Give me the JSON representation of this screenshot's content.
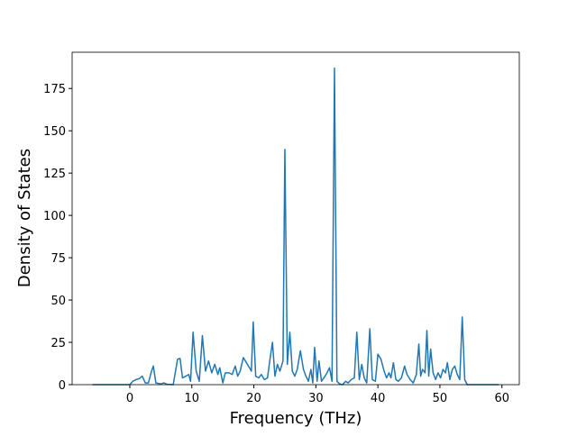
{
  "chart_data": {
    "type": "line",
    "x_label": "Frequency (THz)",
    "y_label": "Density of States",
    "x": [
      -6,
      0,
      0.5,
      1,
      1.5,
      2,
      2.5,
      3,
      3.5,
      3.8,
      4.2,
      5,
      5.5,
      6,
      7,
      7.7,
      8.1,
      8.5,
      9,
      9.5,
      9.8,
      10.2,
      10.7,
      11.2,
      11.7,
      12.2,
      12.7,
      13.2,
      13.7,
      14.2,
      14.5,
      15,
      15.4,
      16,
      16.5,
      17,
      17.4,
      17.8,
      18.3,
      18.8,
      19.3,
      19.6,
      19.9,
      20.3,
      20.8,
      21.2,
      21.7,
      22.2,
      22.6,
      23,
      23.4,
      23.8,
      24.2,
      24.7,
      25,
      25.4,
      25.8,
      26.2,
      26.6,
      27,
      27.5,
      28,
      28.4,
      28.8,
      29.2,
      29.5,
      29.8,
      30.2,
      30.5,
      30.9,
      31.3,
      31.8,
      32.2,
      32.6,
      33,
      33.4,
      33.8,
      34.3,
      34.8,
      35.2,
      35.7,
      36.2,
      36.6,
      37,
      37.4,
      37.8,
      38.2,
      38.7,
      39.1,
      39.6,
      40,
      40.5,
      41,
      41.4,
      41.8,
      42.1,
      42.5,
      42.9,
      43.3,
      43.8,
      44.3,
      44.7,
      45.2,
      45.7,
      46.2,
      46.6,
      46.9,
      47.2,
      47.6,
      47.9,
      48.2,
      48.5,
      48.9,
      49.3,
      49.7,
      50.1,
      50.5,
      50.9,
      51.2,
      51.6,
      52,
      52.4,
      52.8,
      53.2,
      53.6,
      54,
      54.4,
      55,
      59.5
    ],
    "series": [
      {
        "color": "#1f77b4",
        "values": [
          0,
          0,
          2,
          3,
          3.5,
          5,
          1,
          1,
          8,
          11,
          1,
          0.5,
          1,
          0.2,
          0,
          15,
          15.5,
          4,
          5,
          6,
          2,
          31,
          8,
          2,
          29,
          8,
          14,
          7,
          12,
          6,
          10,
          1,
          7,
          7,
          6,
          11,
          5,
          8,
          16,
          13,
          10,
          8,
          37,
          5,
          4,
          6,
          3,
          4,
          15,
          25,
          5,
          12,
          8,
          14,
          139,
          12,
          31,
          8,
          5,
          9,
          20,
          9,
          5,
          2,
          9,
          1,
          22,
          2,
          14,
          2,
          4,
          7,
          10,
          2,
          187,
          2,
          0.5,
          0,
          2,
          1,
          3,
          4,
          31,
          3,
          12,
          4,
          1,
          33,
          3,
          2,
          18,
          15,
          8,
          4,
          7,
          4,
          13,
          3,
          2,
          4,
          11,
          6,
          3,
          1,
          6,
          24,
          5,
          9,
          7,
          32,
          5,
          21,
          7,
          3,
          7,
          4,
          9,
          7,
          13,
          3,
          9,
          11,
          6,
          3,
          40,
          3,
          0,
          0,
          0
        ]
      }
    ],
    "xlim": [
      -9.3,
      62.8
    ],
    "ylim": [
      0,
      196.4
    ],
    "xticks": [
      0,
      10,
      20,
      30,
      40,
      50,
      60
    ],
    "yticks": [
      0,
      25,
      50,
      75,
      100,
      125,
      150,
      175
    ]
  }
}
